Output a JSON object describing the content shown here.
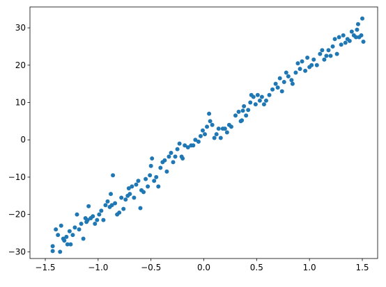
{
  "chart_data": {
    "type": "scatter",
    "color": "#1f77b4",
    "x": [
      -1.43,
      -1.43,
      -1.4,
      -1.38,
      -1.36,
      -1.35,
      -1.33,
      -1.32,
      -1.3,
      -1.29,
      -1.27,
      -1.26,
      -1.24,
      -1.22,
      -1.2,
      -1.18,
      -1.16,
      -1.14,
      -1.12,
      -1.11,
      -1.1,
      -1.09,
      -1.07,
      -1.05,
      -1.03,
      -1.01,
      -0.99,
      -0.97,
      -0.95,
      -0.93,
      -0.91,
      -0.89,
      -0.88,
      -0.87,
      -0.86,
      -0.84,
      -0.82,
      -0.8,
      -0.78,
      -0.76,
      -0.74,
      -0.72,
      -0.71,
      -0.7,
      -0.68,
      -0.66,
      -0.64,
      -0.62,
      -0.6,
      -0.59,
      -0.57,
      -0.55,
      -0.53,
      -0.51,
      -0.5,
      -0.49,
      -0.47,
      -0.45,
      -0.43,
      -0.41,
      -0.39,
      -0.37,
      -0.35,
      -0.33,
      -0.31,
      -0.29,
      -0.27,
      -0.25,
      -0.23,
      -0.21,
      -0.2,
      -0.18,
      -0.15,
      -0.12,
      -0.1,
      -0.08,
      -0.05,
      -0.03,
      -0.01,
      0.01,
      0.03,
      0.05,
      0.06,
      0.08,
      0.1,
      0.12,
      0.14,
      0.16,
      0.18,
      0.2,
      0.22,
      0.24,
      0.26,
      0.3,
      0.33,
      0.35,
      0.36,
      0.37,
      0.38,
      0.4,
      0.42,
      0.44,
      0.45,
      0.47,
      0.49,
      0.51,
      0.53,
      0.55,
      0.57,
      0.59,
      0.62,
      0.65,
      0.68,
      0.7,
      0.72,
      0.74,
      0.76,
      0.78,
      0.8,
      0.83,
      0.84,
      0.87,
      0.89,
      0.91,
      0.93,
      0.96,
      0.98,
      1.0,
      1.02,
      1.04,
      1.07,
      1.1,
      1.12,
      1.14,
      1.16,
      1.18,
      1.2,
      1.22,
      1.24,
      1.26,
      1.28,
      1.3,
      1.32,
      1.34,
      1.36,
      1.38,
      1.4,
      1.42,
      1.44,
      1.45,
      1.46,
      1.47,
      1.49,
      1.5,
      1.51
    ],
    "values": [
      -28.5,
      -29.8,
      -24,
      -25.5,
      -30,
      -23,
      -26.5,
      -27,
      -26,
      -28,
      -24.5,
      -28,
      -25.5,
      -23.5,
      -20,
      -24,
      -22.5,
      -26.5,
      -21,
      -22,
      -21.5,
      -17.8,
      -21,
      -20.5,
      -22.5,
      -21.5,
      -20,
      -19,
      -21.5,
      -17.5,
      -16.5,
      -18,
      -14.5,
      -17.5,
      -9.5,
      -17,
      -20,
      -19.5,
      -15.5,
      -18.5,
      -16,
      -15,
      -13,
      -14.5,
      -12.5,
      -15.5,
      -12,
      -11,
      -18.3,
      -13.5,
      -14,
      -10.5,
      -12.5,
      -9.5,
      -7,
      -5,
      -11,
      -10,
      -12.5,
      -7.5,
      -6,
      -5.5,
      -8.5,
      -4.5,
      -3.5,
      -6,
      -4.5,
      -2.5,
      -1,
      -4.5,
      -5,
      -1.5,
      -2,
      -1.5,
      -1.5,
      0,
      -0.5,
      1,
      2.5,
      1.5,
      3.5,
      7,
      5,
      4,
      0.5,
      1.5,
      3,
      0.5,
      3,
      3,
      2,
      4,
      3.5,
      6.5,
      7.5,
      5,
      5.2,
      7.8,
      9,
      6.5,
      8,
      10,
      12,
      11.5,
      9.5,
      12,
      10.5,
      11.5,
      9.5,
      10.5,
      12,
      13.5,
      15,
      14,
      16.5,
      13,
      15.5,
      18,
      17,
      16,
      15,
      18,
      20.5,
      19,
      21,
      18.5,
      22,
      19.5,
      20,
      21.5,
      20,
      23,
      24,
      21.5,
      22.5,
      24,
      22.5,
      25,
      27,
      23,
      27.5,
      25.5,
      28,
      26,
      27,
      26.5,
      29,
      28,
      27.5,
      29.5,
      31,
      27.5,
      28,
      32.5,
      26.3
    ],
    "xlim": [
      -1.645,
      1.645
    ],
    "ylim": [
      -31.8,
      35.6
    ],
    "xticks": [
      {
        "value": -1.5,
        "label": "−1.5"
      },
      {
        "value": -1.0,
        "label": "−1.0"
      },
      {
        "value": -0.5,
        "label": "−0.5"
      },
      {
        "value": 0,
        "label": "0.0"
      },
      {
        "value": 0.5,
        "label": "0.5"
      },
      {
        "value": 1.0,
        "label": "1.0"
      },
      {
        "value": 1.5,
        "label": "1.5"
      }
    ],
    "yticks": [
      {
        "value": -30,
        "label": "−30"
      },
      {
        "value": -20,
        "label": "−20"
      },
      {
        "value": -10,
        "label": "−10"
      },
      0,
      10,
      20,
      30
    ],
    "grid": false
  }
}
